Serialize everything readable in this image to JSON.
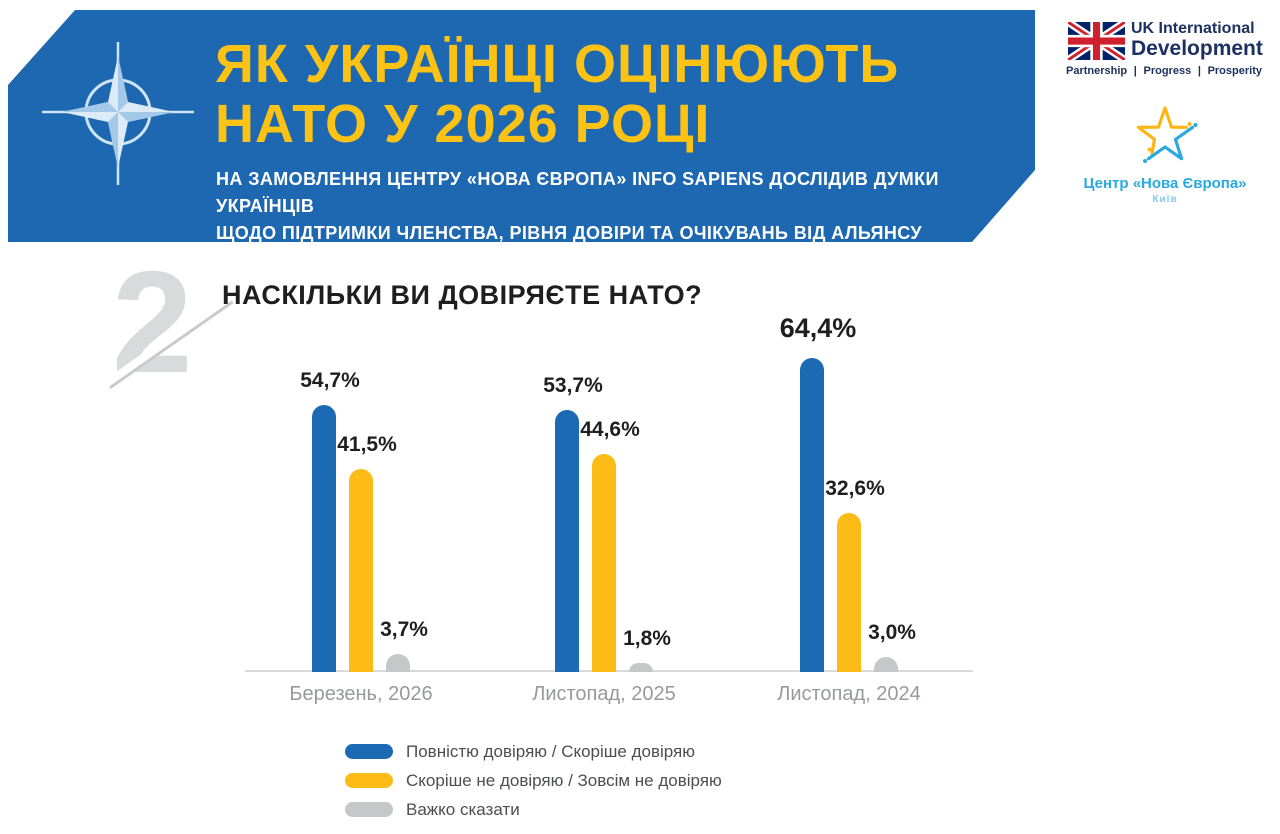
{
  "header": {
    "title_line1": "ЯК УКРАЇНЦІ ОЦІНЮЮТЬ",
    "title_line2": "НАТО У 2026 РОЦІ",
    "subtitle_line1": "НА ЗАМОВЛЕННЯ ЦЕНТРУ «НОВА ЄВРОПА» INFO SAPIENS ДОСЛІДИВ ДУМКИ УКРАЇНЦІВ",
    "subtitle_line2": "ЩОДО ПІДТРИМКИ ЧЛЕНСТВА, РІВНЯ ДОВІРИ ТА ОЧІКУВАНЬ ВІД АЛЬЯНСУ",
    "colors": {
      "banner_blue": "#1e68b2",
      "title_yellow": "#fcc214",
      "subtitle_white": "#ffffff"
    }
  },
  "logos": {
    "uk": {
      "line1": "UK International",
      "line2": "Development",
      "tagline": [
        "Partnership",
        "Progress",
        "Prosperity"
      ],
      "separator": "|",
      "color": "#1d3160"
    },
    "nova_europa": {
      "name": "Центр «Нова Європа»",
      "city": "Київ",
      "blue": "#29a9e0",
      "yellow": "#fdb515"
    }
  },
  "section": {
    "number": "2",
    "question": "НАСКІЛЬКИ ВИ ДОВІРЯЄТЕ НАТО?"
  },
  "chart_data": {
    "type": "bar",
    "title": "НАСКІЛЬКИ ВИ ДОВІРЯЄТЕ НАТО?",
    "categories": [
      "Березень, 2026",
      "Листопад, 2025",
      "Листопад, 2024"
    ],
    "series": [
      {
        "name": "Повністю довіряю / Скоріше довіряю",
        "color": "#1c6ab3",
        "values": [
          54.7,
          53.7,
          64.4
        ]
      },
      {
        "name": "Скоріше не довіряю / Зовсім не довіряю",
        "color": "#fcbb16",
        "values": [
          41.5,
          44.6,
          32.6
        ]
      },
      {
        "name": "Важко сказати",
        "color": "#c6c7c9",
        "values": [
          3.7,
          1.8,
          3.0
        ]
      }
    ],
    "value_labels": [
      [
        "54,7%",
        "53,7%",
        "64,4%"
      ],
      [
        "41,5%",
        "44,6%",
        "32,6%"
      ],
      [
        "3,7%",
        "1,8%",
        "3,0%"
      ]
    ],
    "xlabel": "",
    "ylabel": "",
    "ylim": [
      0,
      70
    ],
    "grid": false,
    "legend_position": "bottom"
  }
}
